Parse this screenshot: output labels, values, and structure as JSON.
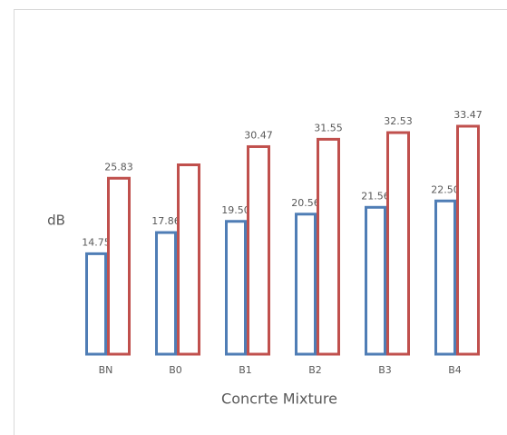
{
  "chart_data": {
    "type": "bar",
    "x_label": "Concrte Mixture",
    "y_label": "dB",
    "categories": [
      "BN",
      "B0",
      "B1",
      "B2",
      "B3",
      "B4"
    ],
    "series": [
      {
        "color": "#4f7db5",
        "values": [
          14.75,
          17.86,
          19.5,
          20.56,
          21.56,
          22.5
        ],
        "value_labels": [
          "14.75",
          "17.86",
          "19.50",
          "20.56",
          "21.56",
          "22.50"
        ]
      },
      {
        "color": "#c0504d",
        "values": [
          25.83,
          27.8,
          30.47,
          31.55,
          32.53,
          33.47
        ],
        "value_labels": [
          "25.83",
          null,
          "30.47",
          "31.55",
          "32.53",
          "33.47"
        ]
      }
    ],
    "ylim": [
      0,
      50
    ]
  }
}
